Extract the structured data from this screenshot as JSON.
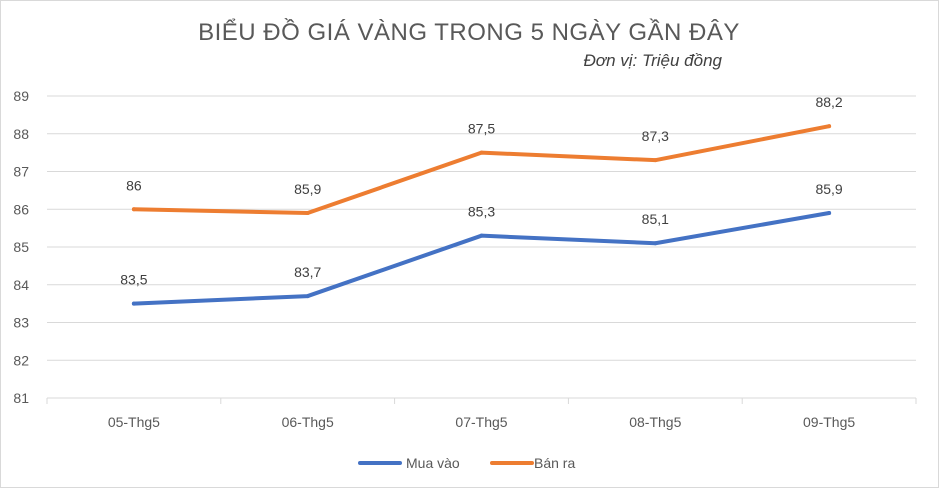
{
  "chart_data": {
    "type": "line",
    "title": "BIỂU ĐỒ GIÁ VÀNG TRONG 5 NGÀY GẦN ĐÂY",
    "subtitle": "Đơn vị: Triệu đồng",
    "categories": [
      "05-Thg5",
      "06-Thg5",
      "07-Thg5",
      "08-Thg5",
      "09-Thg5"
    ],
    "ylim": [
      81,
      89
    ],
    "yticks": [
      81,
      82,
      83,
      84,
      85,
      86,
      87,
      88,
      89
    ],
    "grid": true,
    "legend_position": "bottom",
    "series": [
      {
        "name": "Mua vào",
        "color": "#4472c4",
        "values": [
          83.5,
          83.7,
          85.3,
          85.1,
          85.9
        ],
        "labels": [
          "83,5",
          "83,7",
          "85,3",
          "85,1",
          "85,9"
        ]
      },
      {
        "name": "Bán ra",
        "color": "#ed7d31",
        "values": [
          86,
          85.9,
          87.5,
          87.3,
          88.2
        ],
        "labels": [
          "86",
          "85,9",
          "87,5",
          "87,3",
          "88,2"
        ]
      }
    ]
  }
}
